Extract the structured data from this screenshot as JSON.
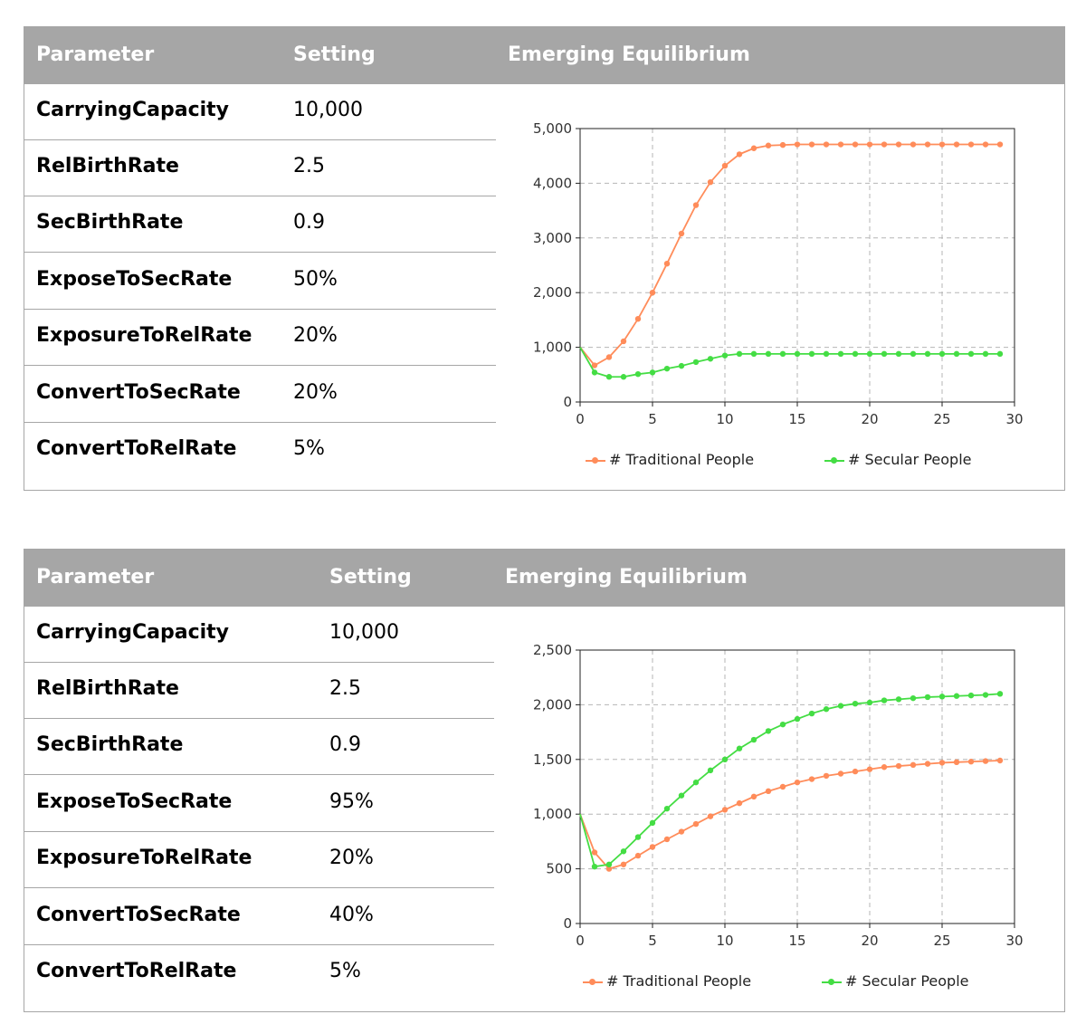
{
  "colors": {
    "traditional": "#ff8c5a",
    "secular": "#44dd44",
    "header_bg": "#a6a6a6"
  },
  "panels": [
    {
      "header": {
        "parameter": "Parameter",
        "setting": "Setting",
        "equilibrium": "Emerging Equilibrium"
      },
      "rows": [
        {
          "name": "CarryingCapacity",
          "value": "10,000"
        },
        {
          "name": "RelBirthRate",
          "value": "2.5"
        },
        {
          "name": "SecBirthRate",
          "value": "0.9"
        },
        {
          "name": "ExposeToSecRate",
          "value": "50%"
        },
        {
          "name": "ExposureToRelRate",
          "value": "20%"
        },
        {
          "name": "ConvertToSecRate",
          "value": "20%"
        },
        {
          "name": "ConvertToRelRate",
          "value": "5%"
        }
      ],
      "legend": {
        "traditional": "# Traditional People",
        "secular": "# Secular People"
      }
    },
    {
      "header": {
        "parameter": "Parameter",
        "setting": "Setting",
        "equilibrium": "Emerging Equilibrium"
      },
      "rows": [
        {
          "name": "CarryingCapacity",
          "value": "10,000"
        },
        {
          "name": "RelBirthRate",
          "value": "2.5"
        },
        {
          "name": "SecBirthRate",
          "value": "0.9"
        },
        {
          "name": "ExposeToSecRate",
          "value": "95%"
        },
        {
          "name": "ExposureToRelRate",
          "value": "20%"
        },
        {
          "name": "ConvertToSecRate",
          "value": "40%"
        },
        {
          "name": "ConvertToRelRate",
          "value": "5%"
        }
      ],
      "legend": {
        "traditional": "# Traditional People",
        "secular": "# Secular People"
      }
    }
  ],
  "chart_data": [
    {
      "type": "line",
      "title": "Emerging Equilibrium",
      "xlabel": "",
      "ylabel": "",
      "xlim": [
        0,
        30
      ],
      "ylim": [
        0,
        5000
      ],
      "xticks": [
        0,
        5,
        10,
        15,
        20,
        25,
        30
      ],
      "yticks": [
        0,
        1000,
        2000,
        3000,
        4000,
        5000
      ],
      "xtick_labels": [
        "0",
        "5",
        "10",
        "15",
        "20",
        "25",
        "30"
      ],
      "ytick_labels": [
        "0",
        "1,000",
        "2,000",
        "3,000",
        "4,000",
        "5,000"
      ],
      "grid": true,
      "legend_position": "bottom",
      "x": [
        0,
        1,
        2,
        3,
        4,
        5,
        6,
        7,
        8,
        9,
        10,
        11,
        12,
        13,
        14,
        15,
        16,
        17,
        18,
        19,
        20,
        21,
        22,
        23,
        24,
        25,
        26,
        27,
        28,
        29
      ],
      "series": [
        {
          "name": "# Traditional People",
          "color": "#ff8c5a",
          "values": [
            1000,
            670,
            820,
            1110,
            1520,
            2000,
            2530,
            3080,
            3600,
            4020,
            4320,
            4530,
            4640,
            4690,
            4700,
            4710,
            4710,
            4710,
            4710,
            4710,
            4710,
            4710,
            4710,
            4710,
            4710,
            4710,
            4710,
            4710,
            4710,
            4710
          ]
        },
        {
          "name": "# Secular People",
          "color": "#44dd44",
          "values": [
            1000,
            540,
            460,
            460,
            510,
            540,
            610,
            660,
            730,
            790,
            850,
            880,
            880,
            880,
            880,
            880,
            880,
            880,
            880,
            880,
            880,
            880,
            880,
            880,
            880,
            880,
            880,
            880,
            880,
            880
          ]
        }
      ]
    },
    {
      "type": "line",
      "title": "Emerging Equilibrium",
      "xlabel": "",
      "ylabel": "",
      "xlim": [
        0,
        30
      ],
      "ylim": [
        0,
        2500
      ],
      "xticks": [
        0,
        5,
        10,
        15,
        20,
        25,
        30
      ],
      "yticks": [
        0,
        500,
        1000,
        1500,
        2000,
        2500
      ],
      "xtick_labels": [
        "0",
        "5",
        "10",
        "15",
        "20",
        "25",
        "30"
      ],
      "ytick_labels": [
        "0",
        "500",
        "1,000",
        "1,500",
        "2,000",
        "2,500"
      ],
      "grid": true,
      "legend_position": "bottom",
      "x": [
        0,
        1,
        2,
        3,
        4,
        5,
        6,
        7,
        8,
        9,
        10,
        11,
        12,
        13,
        14,
        15,
        16,
        17,
        18,
        19,
        20,
        21,
        22,
        23,
        24,
        25,
        26,
        27,
        28,
        29
      ],
      "series": [
        {
          "name": "# Traditional People",
          "color": "#ff8c5a",
          "values": [
            1000,
            650,
            500,
            540,
            620,
            700,
            770,
            840,
            910,
            980,
            1040,
            1100,
            1160,
            1210,
            1250,
            1290,
            1320,
            1350,
            1370,
            1390,
            1410,
            1430,
            1440,
            1450,
            1460,
            1470,
            1475,
            1480,
            1485,
            1490
          ]
        },
        {
          "name": "# Secular People",
          "color": "#44dd44",
          "values": [
            1000,
            520,
            540,
            660,
            790,
            920,
            1050,
            1170,
            1290,
            1400,
            1500,
            1600,
            1680,
            1760,
            1820,
            1870,
            1920,
            1960,
            1990,
            2010,
            2020,
            2040,
            2050,
            2060,
            2070,
            2075,
            2080,
            2085,
            2090,
            2100
          ]
        }
      ]
    }
  ]
}
